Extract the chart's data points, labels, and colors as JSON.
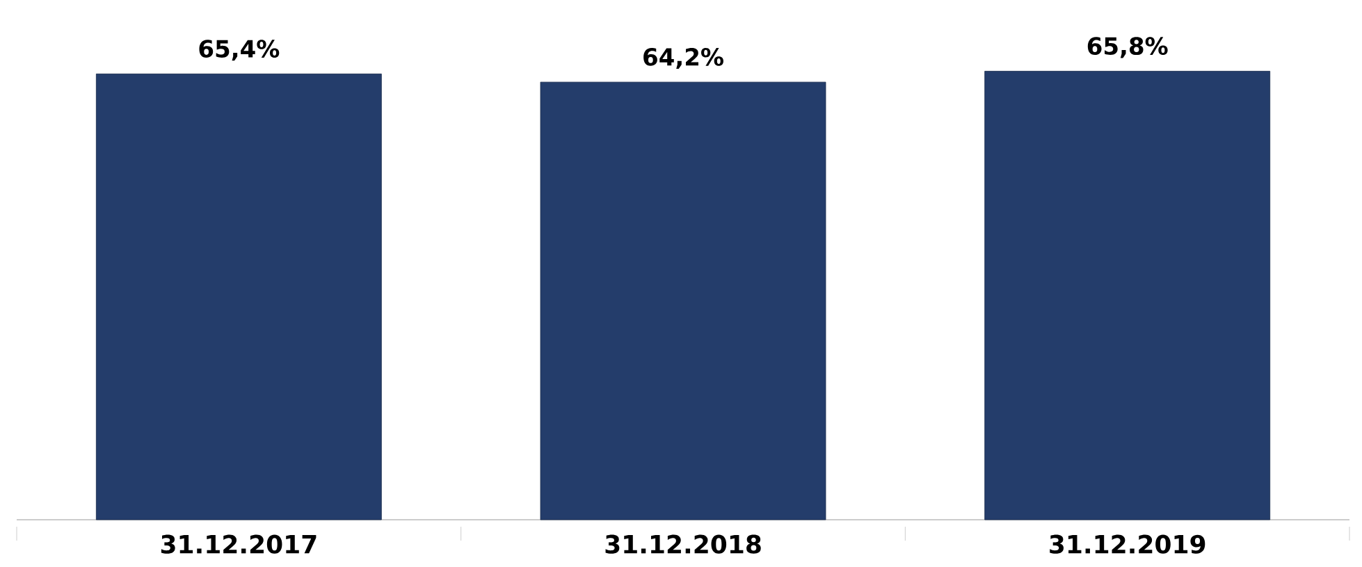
{
  "chart_data": {
    "type": "bar",
    "categories": [
      "31.12.2017",
      "31.12.2018",
      "31.12.2019"
    ],
    "values": [
      65.4,
      64.2,
      65.8
    ],
    "value_labels": [
      "65,4%",
      "64,2%",
      "65,8%"
    ],
    "color": "#243d6b",
    "tick_labels": "x"
  }
}
